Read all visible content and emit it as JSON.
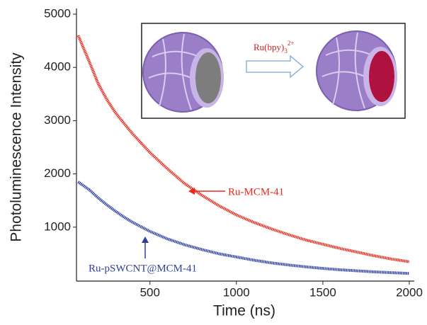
{
  "chart_data": {
    "type": "line",
    "x_label": "Time (ns)",
    "y_label": "Photoluminescence Intensity",
    "x": [
      85,
      150,
      200,
      250,
      300,
      350,
      400,
      500,
      600,
      700,
      800,
      900,
      1000,
      1100,
      1200,
      1300,
      1400,
      1500,
      1600,
      1700,
      1800,
      1900,
      2000
    ],
    "series": [
      {
        "name": "Ru-MCM-41",
        "color": "#e8291c",
        "values": [
          4600,
          4100,
          3700,
          3400,
          3150,
          2950,
          2750,
          2400,
          2100,
          1820,
          1600,
          1400,
          1230,
          1090,
          970,
          860,
          760,
          680,
          600,
          530,
          460,
          400,
          350
        ]
      },
      {
        "name": "Ru-pSWCNT@MCM-41",
        "color": "#2e3f9e",
        "values": [
          1850,
          1700,
          1550,
          1420,
          1300,
          1190,
          1090,
          920,
          780,
          670,
          580,
          500,
          440,
          380,
          330,
          290,
          255,
          225,
          200,
          180,
          160,
          145,
          130
        ]
      }
    ],
    "xlim": [
      75,
      2000
    ],
    "xticks": [
      500,
      1000,
      1500,
      2000
    ],
    "ylim": [
      0,
      5000
    ],
    "yticks": [
      1000,
      2000,
      3000,
      4000,
      5000
    ],
    "inset": {
      "label": "Ru(bpy)",
      "subscript": "3",
      "superscript": "2+"
    }
  }
}
